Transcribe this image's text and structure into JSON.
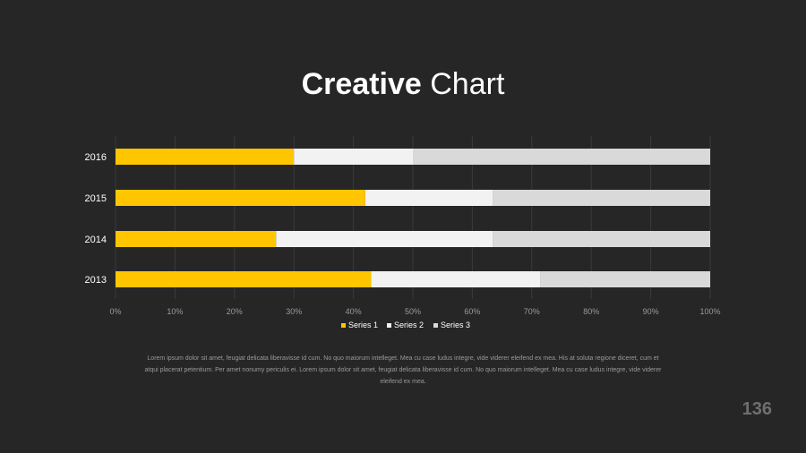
{
  "slide": {
    "title_bold": "Creative",
    "title_light": "Chart",
    "body_text": "Lorem ipsum dolor sit amet, feugiat delicata liberavisse id cum. No quo maiorum intelleget. Mea cu case ludus integre, vide viderer eleifend ex mea. His at soluta regione diceret, cum et atqui placerat petentium. Per amet nonumy periculis ei. Lorem ipsum dolor sit amet, feugiat delicata liberavisse id cum. No quo maiorum intelleget. Mea cu case ludus integre, vide viderer eleifend ex mea.",
    "page_number": "136"
  },
  "chart_data": {
    "type": "bar",
    "orientation": "horizontal",
    "stacked": "percent",
    "categories": [
      "2013",
      "2014",
      "2015",
      "2016"
    ],
    "series": [
      {
        "name": "Series 1",
        "color": "#FFC600",
        "values": [
          43,
          27,
          42,
          30
        ]
      },
      {
        "name": "Series 2",
        "color": "#F2F2F2",
        "values": [
          28.5,
          36.5,
          21.5,
          20
        ]
      },
      {
        "name": "Series 3",
        "color": "#D9D9D9",
        "values": [
          28.5,
          36.5,
          36.5,
          50
        ]
      }
    ],
    "xlim": [
      0,
      100
    ],
    "x_ticks": [
      "0%",
      "10%",
      "20%",
      "30%",
      "40%",
      "50%",
      "60%",
      "70%",
      "80%",
      "90%",
      "100%"
    ],
    "grid": true,
    "legend_position": "bottom"
  }
}
